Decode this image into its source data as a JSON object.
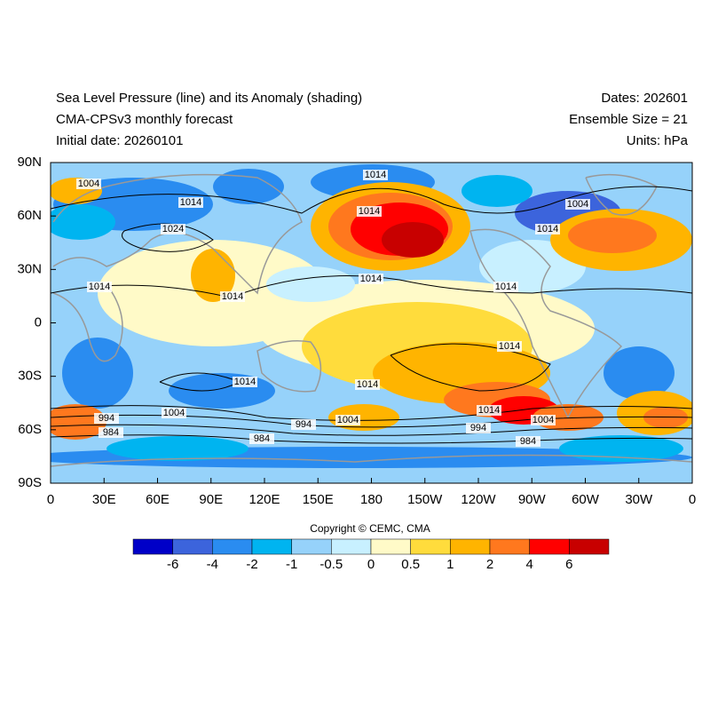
{
  "header": {
    "title": "Sea Level Pressure (line) and its Anomaly (shading)",
    "subtitle": "CMA-CPSv3 monthly forecast",
    "initial_date": "Initial date: 20260101",
    "dates": "Dates: 202601",
    "ensemble": "Ensemble Size = 21",
    "units": "Units: hPa"
  },
  "map": {
    "lat_labels": [
      "90N",
      "60N",
      "30N",
      "0",
      "30S",
      "60S",
      "90S"
    ],
    "lon_labels": [
      "0",
      "30E",
      "60E",
      "90E",
      "120E",
      "150E",
      "180",
      "150W",
      "120W",
      "90W",
      "60W",
      "30W",
      "0"
    ],
    "contour_labels": [
      "1004",
      "1014",
      "1014",
      "1014",
      "1024",
      "1004",
      "1014",
      "1014",
      "1014",
      "1014",
      "1014",
      "1014",
      "1014",
      "1014",
      "1004",
      "994",
      "984",
      "994",
      "1004",
      "1014",
      "1004",
      "994",
      "984",
      "984"
    ]
  },
  "copyright": "Copyright © CEMC, CMA",
  "colorbar": {
    "labels": [
      "-6",
      "-4",
      "-2",
      "-1",
      "-0.5",
      "0",
      "0.5",
      "1",
      "2",
      "4",
      "6"
    ],
    "colors": [
      "#0000c8",
      "#3c64dc",
      "#2a8cf0",
      "#00b4f0",
      "#96d2fa",
      "#c8f0ff",
      "#fffac8",
      "#ffdc3c",
      "#ffb400",
      "#ff781e",
      "#ff0000",
      "#c80000"
    ]
  }
}
